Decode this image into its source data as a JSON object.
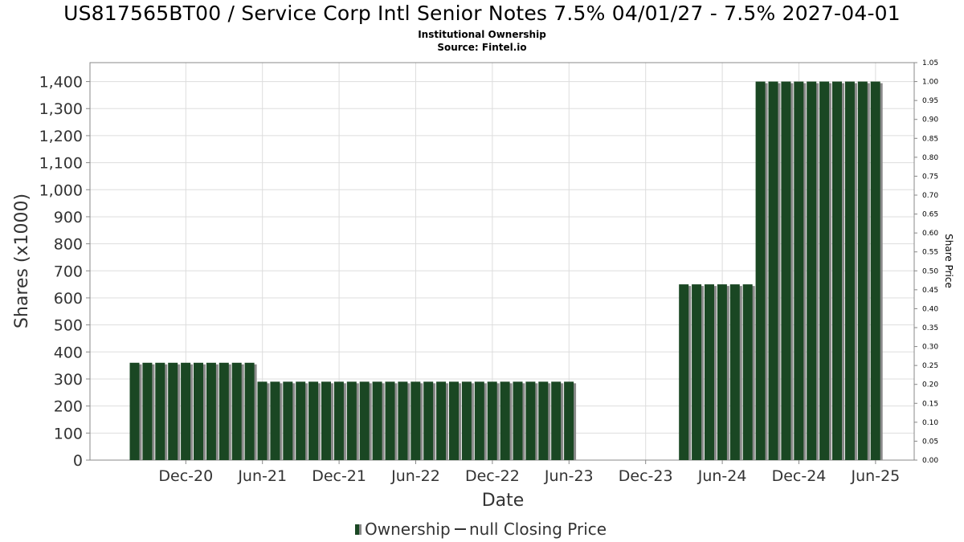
{
  "header": {
    "title": "US817565BT00 / Service Corp Intl Senior Notes 7.5% 04/01/27 - 7.5% 2027-04-01",
    "subtitle1": "Institutional Ownership",
    "subtitle2": "Source: Fintel.io"
  },
  "colors": {
    "bar": "#1a4723",
    "bar_shadow": "#8a8a8a",
    "grid": "#dddddd",
    "frame": "#888888"
  },
  "chart_data": {
    "type": "bar",
    "title": "US817565BT00 / Service Corp Intl Senior Notes 7.5% 04/01/27 - 7.5% 2027-04-01",
    "xlabel": "Date",
    "ylabel": "Shares (x1000)",
    "y2label": "Share Price",
    "ylim": [
      0,
      1470
    ],
    "y2lim": [
      0,
      1.05
    ],
    "yticks": [
      "0",
      "100",
      "200",
      "300",
      "400",
      "500",
      "600",
      "700",
      "800",
      "900",
      "1,000",
      "1,100",
      "1,200",
      "1,300",
      "1,400"
    ],
    "y2ticks": [
      "0.00",
      "0.05",
      "0.10",
      "0.15",
      "0.20",
      "0.25",
      "0.30",
      "0.35",
      "0.40",
      "0.45",
      "0.50",
      "0.55",
      "0.60",
      "0.65",
      "0.70",
      "0.75",
      "0.80",
      "0.85",
      "0.90",
      "0.95",
      "1.00",
      "1.05"
    ],
    "xticks": [
      "Dec-20",
      "Jun-21",
      "Dec-21",
      "Jun-22",
      "Dec-22",
      "Jun-23",
      "Dec-23",
      "Jun-24",
      "Dec-24",
      "Jun-25"
    ],
    "grid": true,
    "legend_position": "bottom-center",
    "series": [
      {
        "name": "Ownership",
        "x": [
          "2020-10",
          "2020-11",
          "2020-12",
          "2021-01",
          "2021-02",
          "2021-03",
          "2021-04",
          "2021-05",
          "2021-06",
          "2021-07",
          "2021-08",
          "2021-09",
          "2021-10",
          "2021-11",
          "2021-12",
          "2022-01",
          "2022-02",
          "2022-03",
          "2022-04",
          "2022-05",
          "2022-06",
          "2022-07",
          "2022-08",
          "2022-09",
          "2022-10",
          "2022-11",
          "2022-12",
          "2023-01",
          "2023-02",
          "2023-03",
          "2023-04",
          "2023-05",
          "2023-06",
          "2023-07",
          "2023-08",
          "2024-05",
          "2024-06",
          "2024-07",
          "2024-08",
          "2024-09",
          "2024-10",
          "2024-11",
          "2024-12",
          "2025-01",
          "2025-02",
          "2025-03",
          "2025-04",
          "2025-05",
          "2025-06",
          "2025-07",
          "2025-08"
        ],
        "values": [
          360,
          360,
          360,
          360,
          360,
          360,
          360,
          360,
          360,
          360,
          290,
          290,
          290,
          290,
          290,
          290,
          290,
          290,
          290,
          290,
          290,
          290,
          290,
          290,
          290,
          290,
          290,
          290,
          290,
          290,
          290,
          290,
          290,
          290,
          290,
          650,
          650,
          650,
          650,
          650,
          650,
          1400,
          1400,
          1400,
          1400,
          1400,
          1400,
          1400,
          1400,
          1400,
          1400
        ]
      },
      {
        "name": "null Closing Price",
        "values": []
      }
    ]
  },
  "legend": {
    "ownership_label": "Ownership",
    "price_label": "null Closing Price"
  }
}
